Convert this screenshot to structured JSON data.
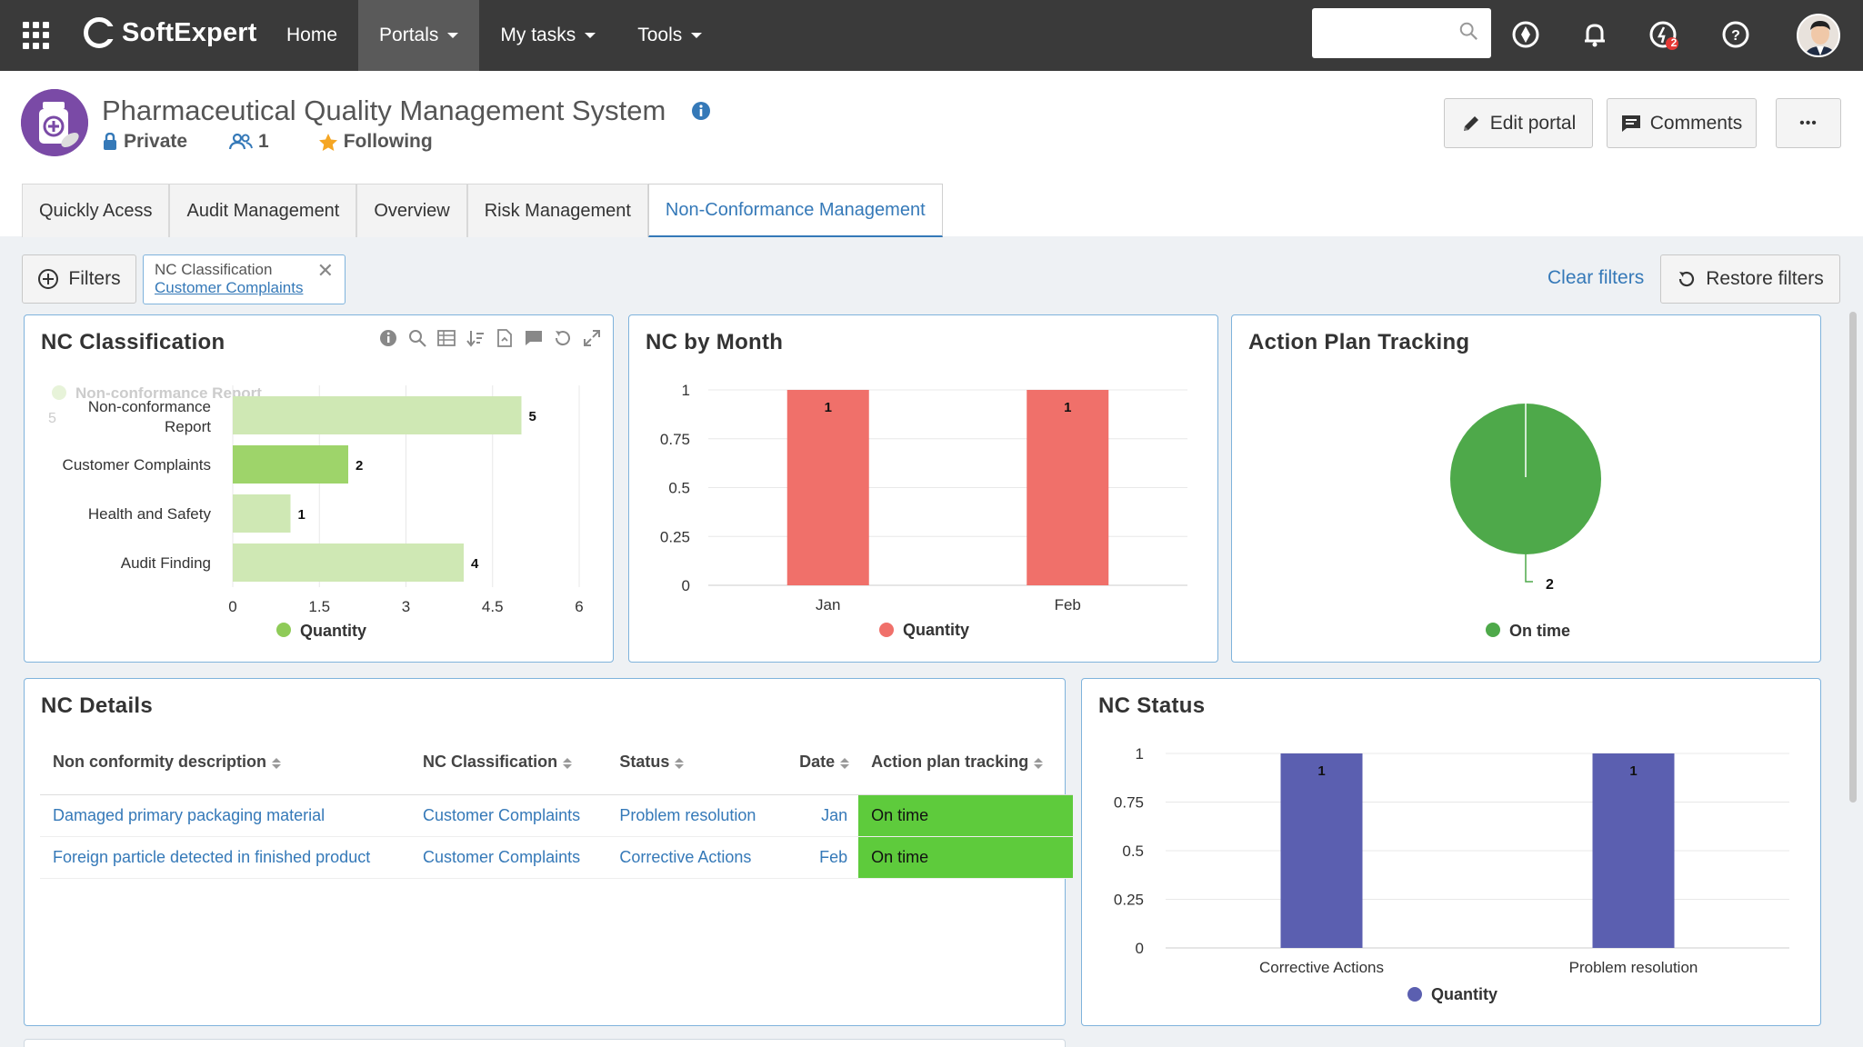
{
  "topbar": {
    "brand": "SoftExpert",
    "nav": [
      {
        "label": "Home",
        "dropdown": false,
        "active": false
      },
      {
        "label": "Portals",
        "dropdown": true,
        "active": true
      },
      {
        "label": "My tasks",
        "dropdown": true,
        "active": false
      },
      {
        "label": "Tools",
        "dropdown": true,
        "active": false
      }
    ],
    "search_value": "",
    "notification_badge": "2"
  },
  "portal": {
    "title": "Pharmaceutical Quality Management System",
    "privacy": "Private",
    "members": "1",
    "following": "Following",
    "buttons": {
      "edit": "Edit portal",
      "comments": "Comments",
      "more": "•••"
    },
    "tabs": [
      {
        "label": "Quickly Acess",
        "active": false
      },
      {
        "label": "Audit Management",
        "active": false
      },
      {
        "label": "Overview",
        "active": false
      },
      {
        "label": "Risk Management",
        "active": false
      },
      {
        "label": "Non-Conformance Management",
        "active": true
      }
    ]
  },
  "filters": {
    "button": "Filters",
    "chip_key": "NC Classification",
    "chip_value": "Customer Complaints",
    "clear": "Clear filters",
    "restore": "Restore filters"
  },
  "colors": {
    "light_green": "#cfe8b4",
    "green": "#9ed46a",
    "legend_green": "#8fcb58",
    "red": "#f0706a",
    "pie_green": "#4ea94a",
    "indigo": "#5b5fb0",
    "status_green": "#5ecb3c",
    "accent": "#3579b8"
  },
  "panels": {
    "nc_classification": {
      "title": "NC Classification",
      "ghost_legend": "Non-conformance Report",
      "ghost_value": "5"
    },
    "nc_by_month": {
      "title": "NC by Month"
    },
    "action_plan": {
      "title": "Action Plan Tracking"
    },
    "nc_details": {
      "title": "NC Details"
    },
    "nc_status": {
      "title": "NC Status"
    }
  },
  "chart_data": [
    {
      "type": "bar",
      "orientation": "horizontal",
      "title": "NC Classification",
      "categories": [
        "Non-conformance Report",
        "Customer Complaints",
        "Health and Safety",
        "Audit Finding"
      ],
      "series": [
        {
          "name": "Quantity",
          "values": [
            5,
            2,
            1,
            4
          ]
        }
      ],
      "highlighted": "Customer Complaints",
      "xlim": [
        0,
        6
      ],
      "xticks": [
        "0",
        "1.5",
        "3",
        "4.5",
        "6"
      ],
      "legend": "bottom"
    },
    {
      "type": "bar",
      "title": "NC by Month",
      "categories": [
        "Jan",
        "Feb"
      ],
      "series": [
        {
          "name": "Quantity",
          "values": [
            1,
            1
          ]
        }
      ],
      "ylim": [
        0,
        1
      ],
      "yticks": [
        "0",
        "0.25",
        "0.5",
        "0.75",
        "1"
      ],
      "legend": "bottom"
    },
    {
      "type": "pie",
      "title": "Action Plan Tracking",
      "slices": [
        {
          "name": "On time",
          "value": 2
        }
      ],
      "legend": "bottom"
    },
    {
      "type": "bar",
      "title": "NC Status",
      "categories": [
        "Corrective Actions",
        "Problem resolution"
      ],
      "series": [
        {
          "name": "Quantity",
          "values": [
            1,
            1
          ]
        }
      ],
      "ylim": [
        0,
        1
      ],
      "yticks": [
        "0",
        "0.25",
        "0.5",
        "0.75",
        "1"
      ],
      "legend": "bottom"
    }
  ],
  "table": {
    "columns": [
      "Non conformity description",
      "NC Classification",
      "Status",
      "Date",
      "Action plan tracking"
    ],
    "rows": [
      [
        "Damaged primary packaging material",
        "Customer Complaints",
        "Problem resolution",
        "Jan",
        "On time"
      ],
      [
        "Foreign particle detected in finished product",
        "Customer Complaints",
        "Corrective Actions",
        "Feb",
        "On time"
      ]
    ]
  }
}
